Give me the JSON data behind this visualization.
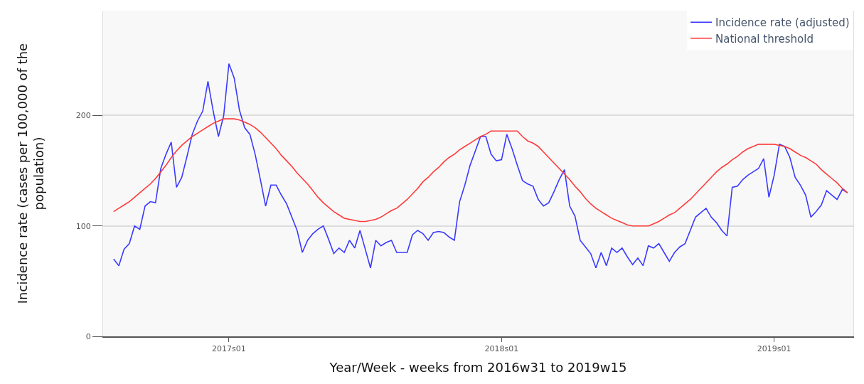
{
  "chart_data": {
    "type": "line",
    "xlabel": "Year/Week - weeks from 2016w31 to 2019w15",
    "ylabel": "Incidence rate (cases per 100,000 of the population)",
    "categories": [
      null,
      null,
      null,
      null,
      null,
      null,
      null,
      null,
      null,
      null,
      null,
      null,
      null,
      null,
      null,
      null,
      null,
      null,
      null,
      null,
      null,
      null,
      "2017s01",
      null,
      null,
      null,
      null,
      null,
      null,
      null,
      null,
      null,
      null,
      null,
      null,
      null,
      null,
      null,
      null,
      null,
      null,
      null,
      null,
      null,
      null,
      null,
      null,
      null,
      null,
      null,
      null,
      null,
      null,
      null,
      null,
      null,
      null,
      null,
      null,
      null,
      null,
      null,
      null,
      null,
      null,
      null,
      null,
      null,
      null,
      null,
      null,
      null,
      null,
      null,
      "2018s01",
      null,
      null,
      null,
      null,
      null,
      null,
      null,
      null,
      null,
      null,
      null,
      null,
      null,
      null,
      null,
      null,
      null,
      null,
      null,
      null,
      null,
      null,
      null,
      null,
      null,
      null,
      null,
      null,
      null,
      null,
      null,
      null,
      null,
      null,
      null,
      null,
      null,
      null,
      null,
      null,
      null,
      null,
      null,
      null,
      null,
      null,
      null,
      null,
      null,
      null,
      null,
      "2019s01",
      null,
      null,
      null,
      null,
      null,
      null,
      null,
      null,
      null,
      null,
      null,
      null,
      null,
      null
    ],
    "ylim": [
      0,
      295
    ],
    "yticks": [
      0,
      100,
      200
    ],
    "grid": "y",
    "legend": "top right",
    "marker": "none",
    "line_style": "solid",
    "series": [
      {
        "name": "Incidence rate (adjusted)",
        "color": "#3a3aff",
        "values": [
          70,
          64,
          79,
          84,
          100,
          97,
          118,
          122,
          121,
          152,
          165,
          176,
          135,
          144,
          163,
          183,
          195,
          204,
          231,
          204,
          181,
          200,
          247,
          234,
          205,
          189,
          183,
          165,
          142,
          118,
          137,
          137,
          128,
          120,
          108,
          96,
          76,
          87,
          93,
          97,
          100,
          88,
          75,
          80,
          76,
          87,
          80,
          96,
          79,
          62,
          87,
          82,
          85,
          87,
          76,
          76,
          76,
          92,
          96,
          93,
          87,
          94,
          95,
          94,
          90,
          87,
          122,
          137,
          155,
          168,
          181,
          181,
          165,
          159,
          160,
          183,
          170,
          155,
          141,
          138,
          136,
          124,
          118,
          121,
          131,
          142,
          151,
          118,
          109,
          87,
          81,
          75,
          62,
          76,
          64,
          80,
          76,
          80,
          72,
          65,
          71,
          64,
          82,
          80,
          84,
          76,
          68,
          76,
          81,
          84,
          96,
          108,
          112,
          116,
          108,
          103,
          96,
          91,
          135,
          136,
          142,
          146,
          149,
          152,
          161,
          126,
          146,
          174,
          172,
          162,
          144,
          137,
          128,
          108,
          113,
          119,
          132,
          128,
          124,
          133,
          130
        ]
      },
      {
        "name": "National threshold",
        "color": "#ff3a3a",
        "values": [
          113,
          116,
          119,
          122,
          126,
          130,
          134,
          138,
          143,
          149,
          155,
          162,
          168,
          173,
          177,
          181,
          184,
          187,
          190,
          193,
          195,
          197,
          197,
          197,
          196,
          194,
          192,
          189,
          185,
          180,
          175,
          170,
          164,
          159,
          154,
          148,
          143,
          138,
          132,
          126,
          121,
          117,
          113,
          110,
          107,
          106,
          105,
          104,
          104,
          105,
          106,
          108,
          111,
          114,
          116,
          120,
          124,
          129,
          134,
          140,
          144,
          149,
          153,
          158,
          162,
          165,
          169,
          172,
          175,
          178,
          181,
          183,
          186,
          186,
          186,
          186,
          186,
          186,
          181,
          177,
          175,
          172,
          167,
          162,
          157,
          152,
          147,
          142,
          136,
          131,
          125,
          120,
          116,
          113,
          110,
          107,
          105,
          103,
          101,
          100,
          100,
          100,
          100,
          102,
          104,
          107,
          110,
          112,
          116,
          120,
          124,
          129,
          134,
          139,
          144,
          149,
          153,
          156,
          160,
          163,
          167,
          170,
          172,
          174,
          174,
          174,
          174,
          173,
          172,
          170,
          167,
          164,
          162,
          159,
          156,
          151,
          147,
          143,
          139,
          134,
          130
        ]
      }
    ]
  }
}
